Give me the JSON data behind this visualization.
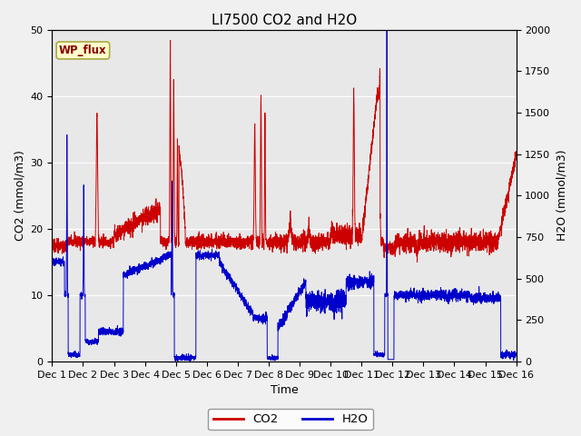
{
  "title": "LI7500 CO2 and H2O",
  "xlabel": "Time",
  "ylabel_left": "CO2 (mmol/m3)",
  "ylabel_right": "H2O (mmol/m3)",
  "co2_ylim": [
    0,
    50
  ],
  "h2o_ylim": [
    0,
    2000
  ],
  "x_tick_labels": [
    "Dec 1",
    "Dec 2",
    "Dec 3",
    "Dec 4",
    "Dec 5",
    "Dec 6",
    "Dec 7",
    "Dec 8",
    "Dec 9",
    "Dec 10",
    "Dec 11",
    "Dec 12",
    "Dec 13",
    "Dec 14",
    "Dec 15",
    "Dec 16"
  ],
  "co2_color": "#cc0000",
  "h2o_color": "#0000cc",
  "fig_bg_color": "#f0f0f0",
  "plot_bg_color": "#e8e8e8",
  "grid_color": "#ffffff",
  "wp_flux_label": "WP_flux",
  "wp_flux_bg": "#ffffcc",
  "wp_flux_border": "#aaaa44",
  "wp_flux_text_color": "#880000",
  "legend_co2": "CO2",
  "legend_h2o": "H2O",
  "title_fontsize": 11,
  "axis_label_fontsize": 9,
  "tick_fontsize": 8
}
